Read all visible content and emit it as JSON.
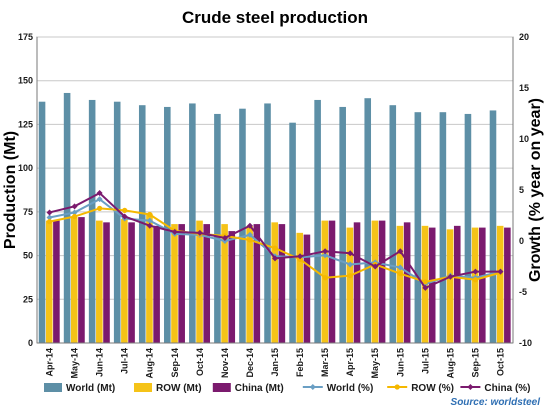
{
  "chart_data": {
    "type": "bar",
    "title": "Crude steel production",
    "ylabel": "Production (Mt)",
    "y2label": "Growth (% year on year)",
    "source": "Source: worldsteel",
    "categories": [
      "Apr-14",
      "May-14",
      "Jun-14",
      "Jul-14",
      "Aug-14",
      "Sep-14",
      "Oct-14",
      "Nov-14",
      "Dec-14",
      "Jan-15",
      "Feb-15",
      "Mar-15",
      "Apr-15",
      "May-15",
      "Jun-15",
      "Jul-15",
      "Aug-15",
      "Sep-15",
      "Oct-15"
    ],
    "ylim": [
      0,
      175
    ],
    "yticks": [
      0,
      25,
      50,
      75,
      100,
      125,
      150,
      175
    ],
    "y2lim": [
      -10,
      20
    ],
    "y2ticks": [
      -10,
      -5,
      0,
      5,
      10,
      15,
      20
    ],
    "grid": true,
    "legend_position": "bottom",
    "bar_series": [
      {
        "name": "World (Mt)",
        "color": "#5d8fa6",
        "values": [
          138,
          143,
          139,
          138,
          136,
          135,
          137,
          131,
          134,
          137,
          126,
          139,
          135,
          140,
          136,
          132,
          132,
          131,
          133
        ]
      },
      {
        "name": "ROW (Mt)",
        "color": "#f5c318",
        "values": [
          70,
          72,
          70,
          71,
          74,
          68,
          70,
          68,
          67,
          69,
          63,
          70,
          66,
          70,
          67,
          67,
          65,
          66,
          67
        ]
      },
      {
        "name": "China (Mt)",
        "color": "#7b1a6e",
        "values": [
          70,
          72,
          69,
          69,
          67,
          68,
          68,
          64,
          68,
          68,
          62,
          70,
          69,
          70,
          69,
          66,
          67,
          66,
          66
        ]
      }
    ],
    "line_series": [
      {
        "name": "World (%)",
        "color": "#6a9fc4",
        "marker": "diamond",
        "values": [
          2.3,
          2.8,
          4.1,
          2.2,
          2.0,
          0.7,
          0.6,
          0.0,
          0.6,
          -1.5,
          -1.6,
          -1.4,
          -2.3,
          -2.1,
          -2.6,
          -4.2,
          -3.4,
          -3.6,
          -3.0
        ]
      },
      {
        "name": "ROW (%)",
        "color": "#f5b800",
        "marker": "circle",
        "values": [
          1.9,
          2.4,
          3.2,
          3.0,
          2.6,
          1.0,
          0.7,
          0.5,
          0.1,
          -0.7,
          -1.8,
          -3.6,
          -3.4,
          -2.3,
          -3.2,
          -4.0,
          -3.5,
          -3.8,
          -3.1
        ]
      },
      {
        "name": "China (%)",
        "color": "#7b1a6e",
        "marker": "diamond",
        "values": [
          2.8,
          3.4,
          4.7,
          2.4,
          1.5,
          0.9,
          0.8,
          0.3,
          1.5,
          -1.7,
          -1.5,
          -1.0,
          -1.2,
          -2.5,
          -1.0,
          -4.6,
          -3.5,
          -3.0,
          -3.0
        ]
      }
    ]
  }
}
